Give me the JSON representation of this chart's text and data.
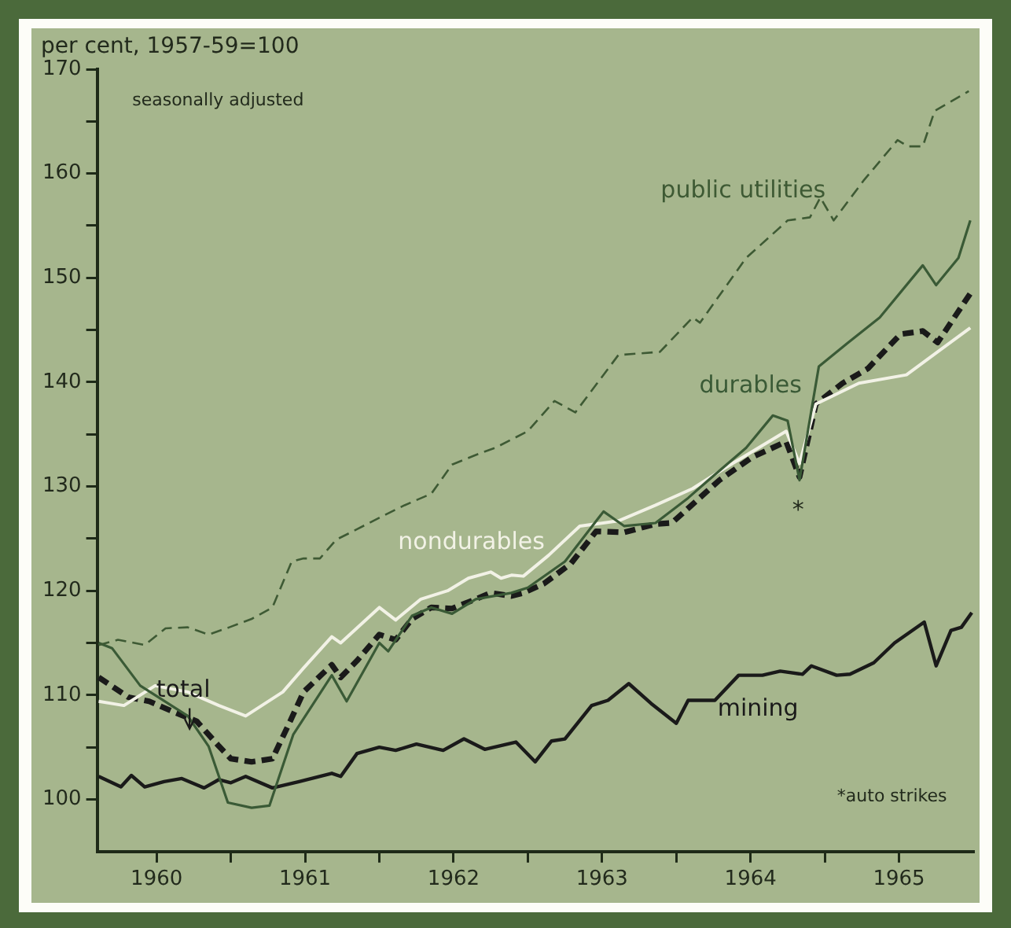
{
  "chart_data": {
    "type": "line",
    "ylabel": "per cent, 1957-59=100",
    "xlim": [
      1960.1,
      1966
    ],
    "ylim": [
      95,
      170
    ],
    "xticks": [
      {
        "value": 1960.5,
        "label": "1960"
      },
      {
        "value": 1961,
        "label": null
      },
      {
        "value": 1961.5,
        "label": "1961"
      },
      {
        "value": 1962,
        "label": null
      },
      {
        "value": 1962.5,
        "label": "1962"
      },
      {
        "value": 1963,
        "label": null
      },
      {
        "value": 1963.5,
        "label": "1963"
      },
      {
        "value": 1964,
        "label": null
      },
      {
        "value": 1964.5,
        "label": "1964"
      },
      {
        "value": 1965,
        "label": null
      },
      {
        "value": 1965.5,
        "label": "1965"
      }
    ],
    "yticks": [
      100,
      {
        "value": 105,
        "label": null
      },
      110,
      {
        "value": 115,
        "label": null
      },
      120,
      {
        "value": 125,
        "label": null
      },
      130,
      {
        "value": 135,
        "label": null
      },
      140,
      {
        "value": 145,
        "label": null
      },
      150,
      {
        "value": 155,
        "label": null
      },
      160,
      {
        "value": 165,
        "label": null
      },
      170
    ],
    "grid": false,
    "legend": false,
    "marker": "none",
    "annotations": [
      "seasonally adjusted",
      "*auto strikes",
      "*"
    ],
    "series": [
      {
        "name": "public utilities",
        "color": "#3e5a34",
        "line_style": "dashed",
        "x": [
          1960.11,
          1960.24,
          1960.42,
          1960.56,
          1960.71,
          1960.85,
          1960.99,
          1961.14,
          1961.28,
          1961.41,
          1961.49,
          1961.6,
          1961.71,
          1961.85,
          1962.0,
          1962.17,
          1962.35,
          1962.49,
          1962.68,
          1962.78,
          1963.0,
          1963.18,
          1963.32,
          1963.61,
          1963.89,
          1964.11,
          1964.16,
          1964.47,
          1964.75,
          1964.9,
          1964.97,
          1965.06,
          1965.26,
          1965.49,
          1965.56,
          1965.66,
          1965.74,
          1965.97
        ],
        "values": [
          114.8,
          115.3,
          114.8,
          116.4,
          116.5,
          115.8,
          116.5,
          117.3,
          118.4,
          122.8,
          123.1,
          123.1,
          124.9,
          125.9,
          127.0,
          128.2,
          129.3,
          132.1,
          133.2,
          133.7,
          135.3,
          138.2,
          137.1,
          142.6,
          142.9,
          146.2,
          145.7,
          151.9,
          155.5,
          155.8,
          157.7,
          155.5,
          159.3,
          163.2,
          162.6,
          162.6,
          166.0,
          167.9
        ]
      },
      {
        "name": "durables",
        "color": "#3a5a36",
        "line_style": "solid",
        "x": [
          1960.11,
          1960.2,
          1960.39,
          1960.71,
          1960.85,
          1960.98,
          1961.14,
          1961.26,
          1961.42,
          1961.68,
          1961.78,
          1962.0,
          1962.06,
          1962.22,
          1962.35,
          1962.49,
          1962.65,
          1962.89,
          1963.0,
          1963.25,
          1963.51,
          1963.65,
          1963.86,
          1964.08,
          1964.2,
          1964.47,
          1964.65,
          1964.75,
          1964.83,
          1964.96,
          1965.15,
          1965.37,
          1965.66,
          1965.75,
          1965.9,
          1965.98
        ],
        "values": [
          115.0,
          114.5,
          110.9,
          108.0,
          105.1,
          99.7,
          99.2,
          99.4,
          106.2,
          111.9,
          109.4,
          115.0,
          114.2,
          117.6,
          118.4,
          117.8,
          119.2,
          119.8,
          120.3,
          122.8,
          127.6,
          126.2,
          126.5,
          128.9,
          130.4,
          133.7,
          136.8,
          136.3,
          130.6,
          141.5,
          143.7,
          146.2,
          151.2,
          149.3,
          151.9,
          155.5
        ]
      },
      {
        "name": "nondurables",
        "color": "#f2f2e6",
        "line_style": "solid",
        "x": [
          1960.11,
          1960.28,
          1960.49,
          1960.71,
          1960.92,
          1961.1,
          1961.35,
          1961.49,
          1961.68,
          1961.74,
          1962.0,
          1962.11,
          1962.28,
          1962.46,
          1962.6,
          1962.75,
          1962.82,
          1962.89,
          1962.97,
          1963.14,
          1963.35,
          1963.61,
          1963.86,
          1964.11,
          1964.32,
          1964.74,
          1964.83,
          1964.94,
          1965.23,
          1965.55,
          1965.76,
          1965.98
        ],
        "values": [
          109.4,
          109.0,
          110.9,
          110.3,
          109.0,
          108.0,
          110.3,
          112.6,
          115.6,
          115.0,
          118.4,
          117.2,
          119.2,
          120.0,
          121.2,
          121.8,
          121.2,
          121.5,
          121.4,
          123.4,
          126.2,
          126.7,
          128.2,
          129.8,
          131.7,
          135.3,
          132.2,
          137.9,
          139.9,
          140.7,
          142.9,
          145.2
        ]
      },
      {
        "name": "total",
        "color": "#1a1a1a",
        "line_style": "dashed",
        "x": [
          1960.11,
          1960.31,
          1960.45,
          1960.63,
          1960.77,
          1960.92,
          1961.0,
          1961.14,
          1961.28,
          1961.39,
          1961.49,
          1961.68,
          1961.74,
          1961.85,
          1962.0,
          1962.11,
          1962.22,
          1962.35,
          1962.49,
          1962.65,
          1962.75,
          1962.89,
          1962.97,
          1963.11,
          1963.29,
          1963.46,
          1963.65,
          1963.86,
          1963.97,
          1964.29,
          1964.51,
          1964.74,
          1964.83,
          1964.94,
          1965.12,
          1965.29,
          1965.51,
          1965.66,
          1965.76,
          1965.98
        ],
        "values": [
          111.7,
          109.8,
          109.4,
          108.3,
          107.5,
          105.1,
          103.9,
          103.6,
          103.9,
          107.2,
          110.3,
          112.9,
          111.7,
          113.3,
          115.8,
          115.3,
          117.3,
          118.4,
          118.3,
          119.2,
          119.8,
          119.5,
          119.8,
          120.7,
          122.6,
          125.7,
          125.6,
          126.4,
          126.5,
          130.6,
          132.8,
          134.3,
          130.9,
          137.9,
          139.9,
          141.3,
          144.6,
          144.9,
          143.8,
          148.5
        ]
      },
      {
        "name": "mining",
        "color": "#1a1a1a",
        "line_style": "solid",
        "x": [
          1960.11,
          1960.26,
          1960.33,
          1960.42,
          1960.55,
          1960.67,
          1960.82,
          1960.92,
          1961.0,
          1961.1,
          1961.28,
          1961.46,
          1961.68,
          1961.74,
          1961.85,
          1962.0,
          1962.11,
          1962.25,
          1962.43,
          1962.57,
          1962.71,
          1962.92,
          1963.05,
          1963.16,
          1963.25,
          1963.43,
          1963.54,
          1963.68,
          1963.83,
          1964.0,
          1964.08,
          1964.26,
          1964.42,
          1964.58,
          1964.7,
          1964.85,
          1964.91,
          1965.08,
          1965.17,
          1965.33,
          1965.47,
          1965.67,
          1965.75,
          1965.85,
          1965.92,
          1965.99
        ],
        "values": [
          102.2,
          101.2,
          102.3,
          101.2,
          101.7,
          102.0,
          101.1,
          101.9,
          101.6,
          102.2,
          101.1,
          101.7,
          102.5,
          102.2,
          104.4,
          105.0,
          104.7,
          105.3,
          104.7,
          105.8,
          104.8,
          105.5,
          103.6,
          105.6,
          105.8,
          109.0,
          109.5,
          111.1,
          109.2,
          107.3,
          109.5,
          109.5,
          111.9,
          111.9,
          112.3,
          112.0,
          112.8,
          111.9,
          112.0,
          113.1,
          115.0,
          117.0,
          112.8,
          116.2,
          116.5,
          117.9
        ]
      }
    ]
  }
}
